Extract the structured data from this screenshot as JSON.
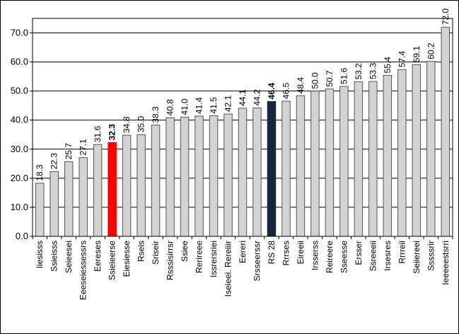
{
  "chart_data": {
    "type": "bar",
    "title": "",
    "xlabel": "",
    "ylabel": "",
    "ylim": [
      0,
      75
    ],
    "yticks": [
      "0.0",
      "10.0",
      "20.0",
      "30.0",
      "40.0",
      "50.0",
      "60.0",
      "70.0"
    ],
    "grid": "horizontal",
    "categories": [
      "Iiesisss",
      "Ssieisss",
      "Seieesei",
      "Eeeseiessessrs",
      "Eereses",
      "Ssieieerse",
      "Eiesiesse",
      "Rseis",
      "Sriseir",
      "Rsssisirrsr",
      "Ssiee",
      "Rerireee",
      "Issrersriei",
      "Iseieei. Rereiiir",
      "Eereri",
      "Srsseerssr",
      "RS 28",
      "Rrrses",
      "Eireeii",
      "Irsserss",
      "Reireere",
      "Sseesse",
      "Ersser",
      "Ssreeeii",
      "Irsesres",
      "Rrrreii",
      "Seiiereei",
      "Sssssrir",
      "Ieeeeestsrri"
    ],
    "values": [
      18.3,
      22.3,
      25.7,
      27.1,
      31.6,
      32.3,
      34.8,
      35.0,
      38.3,
      40.8,
      41.0,
      41.4,
      41.5,
      42.1,
      44.1,
      44.2,
      46.4,
      46.5,
      48.4,
      50.0,
      50.7,
      51.6,
      53.2,
      53.3,
      55.4,
      57.4,
      59.1,
      60.2,
      72.0
    ],
    "value_labels": [
      "18.3",
      "22.3",
      "25.7",
      "27.1",
      "31.6",
      "32.3",
      "34.8",
      "35.0",
      "38.3",
      "40.8",
      "41.0",
      "41.4",
      "41.5",
      "42.1",
      "44.1",
      "44.2",
      "46.4",
      "46.5",
      "48.4",
      "50.0",
      "50.7",
      "51.6",
      "53.2",
      "53.3",
      "55.4",
      "57.4",
      "59.1",
      "60.2",
      "72.0"
    ],
    "highlight": [
      {
        "category": "Ssieieerse",
        "bar_color": "#ff0000",
        "label_color": "#ff0000",
        "label_bold": true
      },
      {
        "category": "RS 28",
        "bar_color": "#17263c",
        "label_color": "#000000",
        "label_bold": true
      }
    ],
    "bar_color": "#d3d3d3",
    "bar_stroke": "#555555"
  }
}
